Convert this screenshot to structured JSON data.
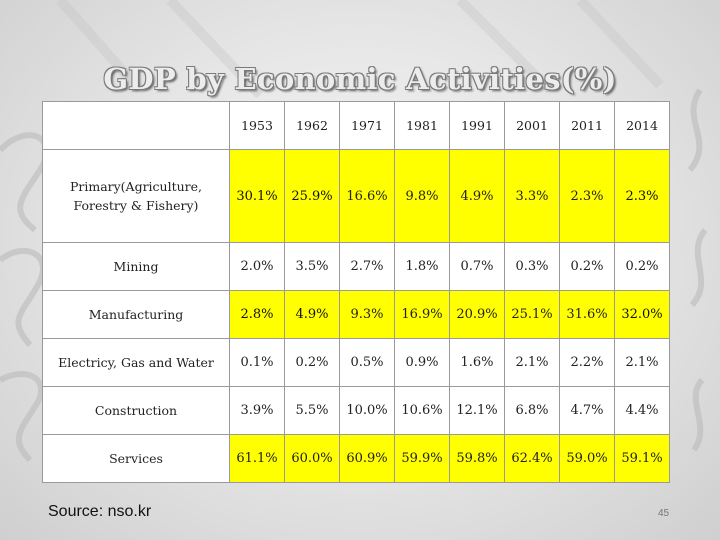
{
  "slide": {
    "title": "GDP by Economic Activities(%)",
    "source": "Source: nso.kr",
    "page_number": "45"
  },
  "table": {
    "corner": "",
    "years": [
      "1953",
      "1962",
      "1971",
      "1981",
      "1991",
      "2001",
      "2011",
      "2014"
    ],
    "rows": [
      {
        "label_line1": "Primary(Agriculture,",
        "label_line2": "Forestry & Fishery)",
        "highlight": true,
        "values": [
          "30.1%",
          "25.9%",
          "16.6%",
          "9.8%",
          "4.9%",
          "3.3%",
          "2.3%",
          "2.3%"
        ],
        "bold": [
          true,
          true,
          false,
          false,
          false,
          false,
          false,
          true
        ]
      },
      {
        "label_line1": "Mining",
        "label_line2": "",
        "highlight": false,
        "values": [
          "2.0%",
          "3.5%",
          "2.7%",
          "1.8%",
          "0.7%",
          "0.3%",
          "0.2%",
          "0.2%"
        ],
        "bold": [
          false,
          false,
          false,
          false,
          false,
          false,
          false,
          false
        ]
      },
      {
        "label_line1": "Manufacturing",
        "label_line2": "",
        "highlight": true,
        "values": [
          "2.8%",
          "4.9%",
          "9.3%",
          "16.9%",
          "20.9%",
          "25.1%",
          "31.6%",
          "32.0%"
        ],
        "bold": [
          true,
          true,
          false,
          false,
          false,
          false,
          false,
          true
        ]
      },
      {
        "label_line1": "Electricy, Gas and Water",
        "label_line2": "",
        "highlight": false,
        "values": [
          "0.1%",
          "0.2%",
          "0.5%",
          "0.9%",
          "1.6%",
          "2.1%",
          "2.2%",
          "2.1%"
        ],
        "bold": [
          false,
          false,
          false,
          false,
          false,
          false,
          false,
          false
        ]
      },
      {
        "label_line1": "Construction",
        "label_line2": "",
        "highlight": false,
        "values": [
          "3.9%",
          "5.5%",
          "10.0%",
          "10.6%",
          "12.1%",
          "6.8%",
          "4.7%",
          "4.4%"
        ],
        "bold": [
          false,
          false,
          false,
          false,
          false,
          false,
          false,
          false
        ]
      },
      {
        "label_line1": "Services",
        "label_line2": "",
        "highlight": true,
        "values": [
          "61.1%",
          "60.0%",
          "60.9%",
          "59.9%",
          "59.8%",
          "62.4%",
          "59.0%",
          "59.1%"
        ],
        "bold": [
          false,
          false,
          false,
          false,
          false,
          false,
          false,
          false
        ]
      }
    ]
  },
  "colors": {
    "highlight": "#ffff00",
    "border": "#9a9a9a",
    "title_fill": "#ececec"
  }
}
